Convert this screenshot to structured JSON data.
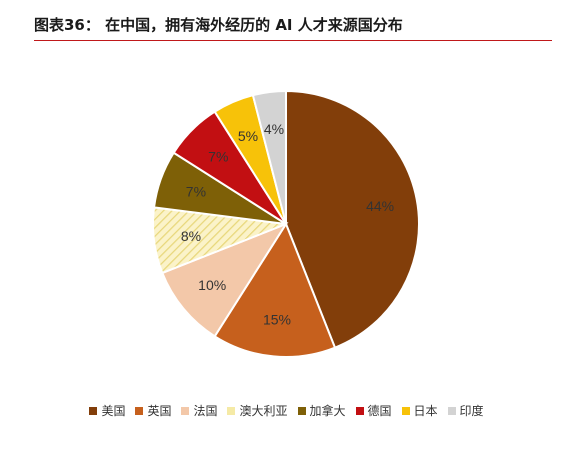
{
  "figure": {
    "title": "图表36：  在中国，拥有海外经历的 AI 人才来源国分布"
  },
  "chart_data": {
    "type": "pie",
    "start_angle_deg": 0,
    "direction": "clockwise",
    "slices": [
      {
        "label": "美国",
        "value": 44,
        "display": "44%",
        "color": "#823e0a"
      },
      {
        "label": "英国",
        "value": 15,
        "display": "15%",
        "color": "#c6601d"
      },
      {
        "label": "法国",
        "value": 10,
        "display": "10%",
        "color": "#f3c8a9"
      },
      {
        "label": "澳大利亚",
        "value": 8,
        "display": "8%",
        "color": "#f5eaa6",
        "pattern": "hatched"
      },
      {
        "label": "加拿大",
        "value": 7,
        "display": "7%",
        "color": "#7e6007"
      },
      {
        "label": "德国",
        "value": 7,
        "display": "7%",
        "color": "#c20f12"
      },
      {
        "label": "日本",
        "value": 5,
        "display": "5%",
        "color": "#f7c209"
      },
      {
        "label": "印度",
        "value": 4,
        "display": "4%",
        "color": "#d3d3d3"
      }
    ],
    "legend": {
      "position": "bottom"
    }
  }
}
